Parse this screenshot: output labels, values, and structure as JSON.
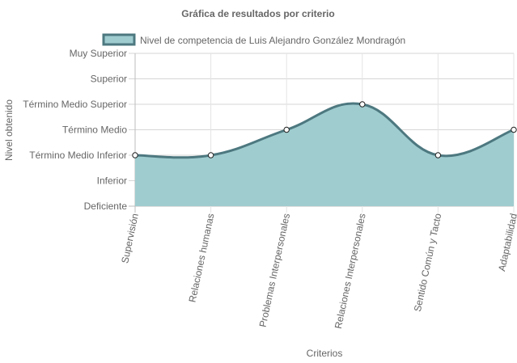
{
  "chart_data": {
    "type": "area",
    "title": "Gráfica de resultados por criterio",
    "xlabel": "Criterios",
    "ylabel": "Nivel obtenido",
    "legend_position": "top",
    "grid": true,
    "categories": [
      "Supervisión",
      "Relaciones humanas",
      "Problemas Interpersonales",
      "Relaciones Interpersonales",
      "Sentido Común y Tacto",
      "Adaptabilidad"
    ],
    "y_levels": [
      "Deficiente",
      "Inferior",
      "Término Medio Inferior",
      "Término Medio",
      "Término Medio Superior",
      "Superior",
      "Muy Superior"
    ],
    "ylim": [
      0,
      6
    ],
    "series": [
      {
        "name": "Nivel de competencia de Luis Alejandro González Mondragón",
        "values": [
          2,
          2,
          3,
          4,
          2,
          3
        ],
        "fill_color": "#9fcccf",
        "line_color": "#4d7880"
      }
    ]
  }
}
